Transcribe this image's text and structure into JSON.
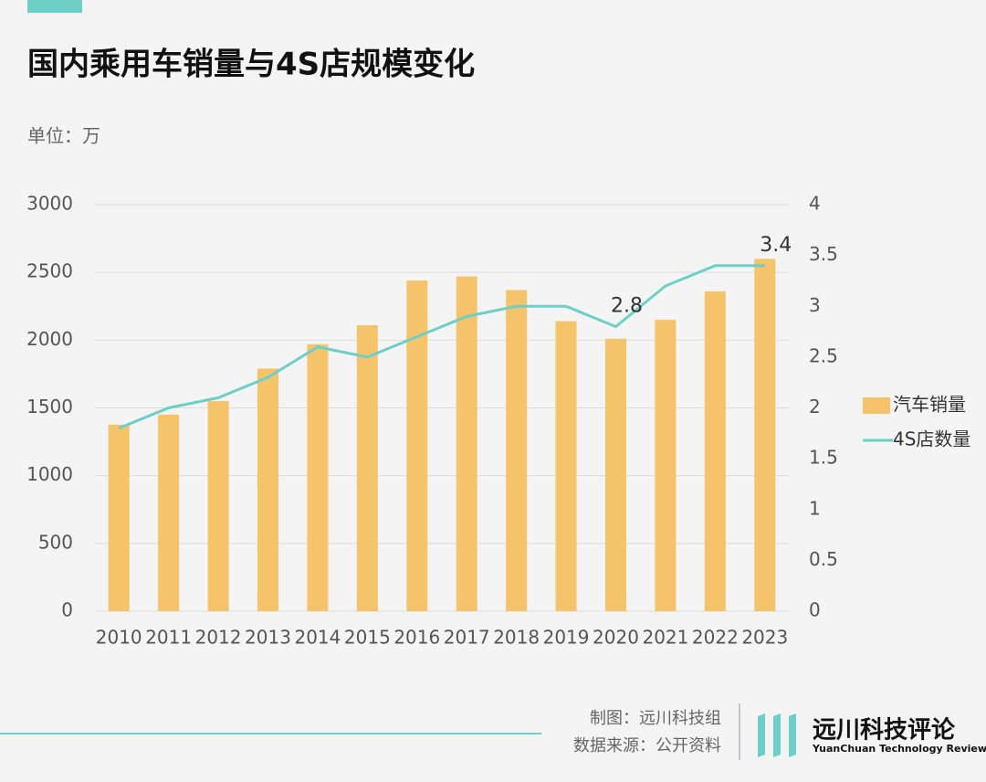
{
  "chart_data": {
    "type": "bar-line",
    "title": "国内乘用车销量与4S店规模变化",
    "subtitle": "单位：万",
    "categories": [
      "2010",
      "2011",
      "2012",
      "2013",
      "2014",
      "2015",
      "2016",
      "2017",
      "2018",
      "2019",
      "2020",
      "2021",
      "2022",
      "2023"
    ],
    "series": [
      {
        "name": "汽车销量",
        "type": "bar",
        "color": "#f5c46a",
        "values": [
          1376,
          1450,
          1550,
          1790,
          1970,
          2110,
          2440,
          2470,
          2370,
          2140,
          2010,
          2150,
          2360,
          2600
        ]
      },
      {
        "name": "4S店数量",
        "type": "line",
        "axis": "y2",
        "color": "#6dcfc8",
        "values": [
          1.8,
          2.0,
          2.1,
          2.3,
          2.6,
          2.5,
          2.7,
          2.9,
          3.0,
          3.0,
          2.8,
          3.2,
          3.4,
          3.4
        ],
        "value_labels": [
          null,
          null,
          null,
          null,
          null,
          null,
          null,
          null,
          null,
          null,
          "2.8",
          null,
          null,
          "3.4"
        ]
      }
    ],
    "ylim": [
      0,
      3000
    ],
    "yticks": [
      0,
      500,
      1000,
      1500,
      2000,
      2500,
      3000
    ],
    "y2lim": [
      0,
      4
    ],
    "y2ticks": [
      0,
      0.5,
      1,
      1.5,
      2,
      2.5,
      3,
      3.5,
      4
    ],
    "grid": true,
    "legend": "right"
  },
  "footer": {
    "credit": "制图：远川科技组",
    "source": "数据来源：公开资料",
    "brand": "远川科技评论",
    "brand_en": "YuanChuan Technology Review"
  }
}
